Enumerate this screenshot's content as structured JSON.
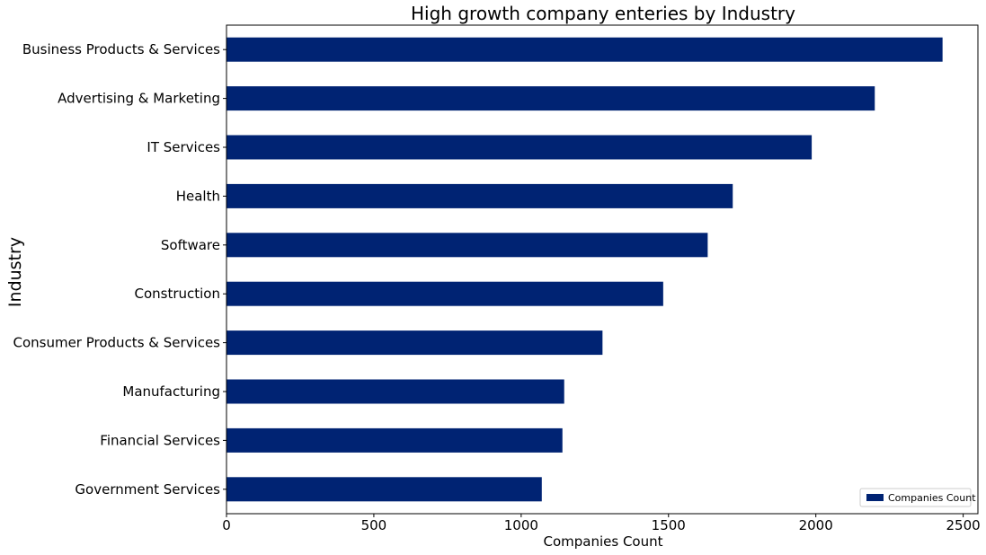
{
  "chart_data": {
    "type": "bar",
    "orientation": "horizontal",
    "title": "High growth company enteries by Industry",
    "xlabel": "Companies Count",
    "ylabel": "Industry",
    "categories": [
      "Business Products & Services",
      "Advertising & Marketing",
      "IT Services",
      "Health",
      "Software",
      "Construction",
      "Consumer Products & Services",
      "Manufacturing",
      "Financial Services",
      "Government Services"
    ],
    "series": [
      {
        "name": "Companies Count",
        "color": "#002373",
        "values": [
          2430,
          2200,
          1986,
          1718,
          1633,
          1482,
          1276,
          1146,
          1140,
          1070
        ]
      }
    ],
    "xlim": [
      0,
      2550
    ],
    "xticks": [
      0,
      500,
      1000,
      1500,
      2000,
      2500
    ],
    "grid": false,
    "legend_position": "lower-right"
  }
}
